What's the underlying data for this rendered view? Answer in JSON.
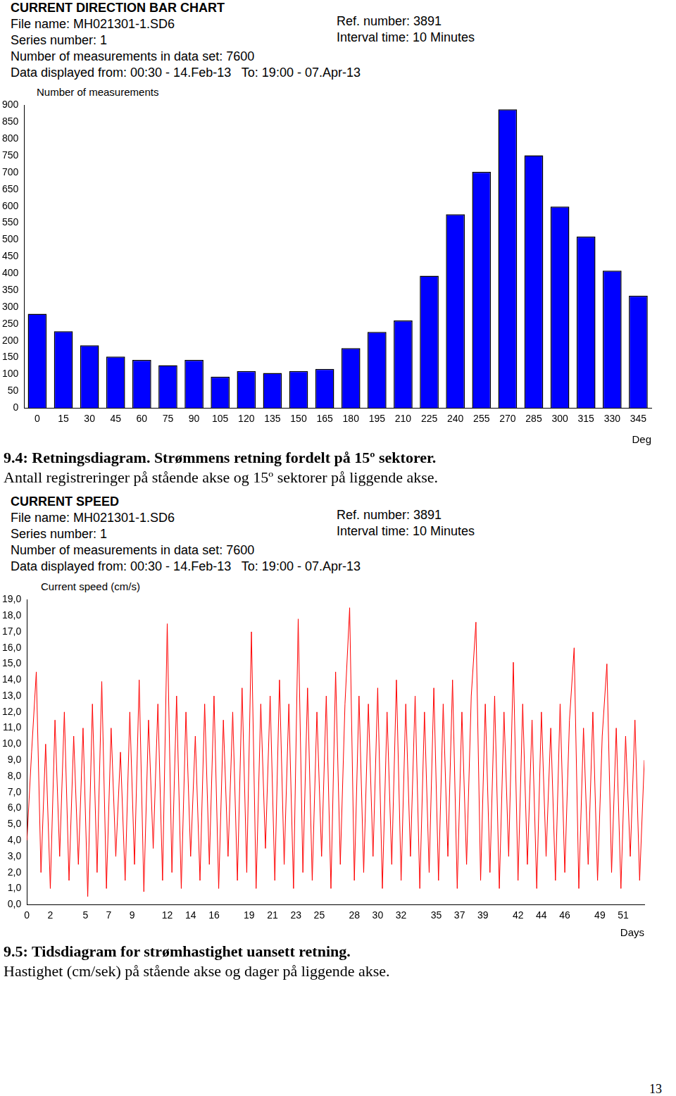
{
  "page_number": "13",
  "chart_data": [
    {
      "type": "bar",
      "title": "CURRENT DIRECTION BAR CHART",
      "subtitle": [
        "File name: MH021301-1.SD6",
        "Series number: 1",
        "Number of measurements in data set: 7600",
        "Data displayed from: 00:30 - 14.Feb-13   To: 19:00 - 07.Apr-13"
      ],
      "annotations": [
        "Ref. number: 3891",
        "Interval time: 10 Minutes"
      ],
      "ylabel": "Number of measurements",
      "xlabel": "Deg",
      "categories": [
        "0",
        "15",
        "30",
        "45",
        "60",
        "75",
        "90",
        "105",
        "120",
        "135",
        "150",
        "165",
        "180",
        "195",
        "210",
        "225",
        "240",
        "255",
        "270",
        "285",
        "300",
        "315",
        "330",
        "345"
      ],
      "values": [
        280,
        228,
        186,
        153,
        143,
        127,
        143,
        93,
        110,
        104,
        110,
        116,
        178,
        226,
        260,
        393,
        576,
        702,
        888,
        751,
        599,
        510,
        408,
        334
      ],
      "color": "#0000ff",
      "ylim": [
        0,
        900
      ],
      "yticks": [
        0,
        50,
        100,
        150,
        200,
        250,
        300,
        350,
        400,
        450,
        500,
        550,
        600,
        650,
        700,
        750,
        800,
        850,
        900
      ],
      "grid": false,
      "caption": [
        "9.4: Retningsdiagram. Strømmens retning fordelt på 15º sektorer.",
        "Antall registreringer på stående akse og 15º sektorer på liggende akse."
      ]
    },
    {
      "type": "line",
      "title": "CURRENT SPEED",
      "subtitle": [
        "File name: MH021301-1.SD6",
        "Series number: 1",
        "Number of measurements in data set: 7600",
        "Data displayed from: 00:30 - 14.Feb-13   To: 19:00 - 07.Apr-13"
      ],
      "annotations": [
        "Ref. number: 3891",
        "Interval time: 10 Minutes"
      ],
      "ylabel": "Current speed (cm/s)",
      "xlabel": "Days",
      "x": [
        0,
        0.4,
        0.8,
        1.2,
        1.6,
        2,
        2.4,
        2.8,
        3.2,
        3.6,
        4,
        4.4,
        4.8,
        5.2,
        5.6,
        6,
        6.4,
        6.8,
        7.2,
        7.6,
        8,
        8.4,
        8.8,
        9.2,
        9.6,
        10,
        10.4,
        10.8,
        11.2,
        11.6,
        12,
        12.4,
        12.8,
        13.2,
        13.6,
        14,
        14.4,
        14.8,
        15.2,
        15.6,
        16,
        16.4,
        16.8,
        17.2,
        17.6,
        18,
        18.4,
        18.8,
        19.2,
        19.6,
        20,
        20.4,
        20.8,
        21.2,
        21.6,
        22,
        22.4,
        22.8,
        23.2,
        23.6,
        24,
        24.4,
        24.8,
        25.2,
        25.6,
        26,
        26.4,
        26.8,
        27.2,
        27.6,
        28,
        28.4,
        28.8,
        29.2,
        29.6,
        30,
        30.4,
        30.8,
        31.2,
        31.6,
        32,
        32.4,
        32.8,
        33.2,
        33.6,
        34,
        34.4,
        34.8,
        35.2,
        35.6,
        36,
        36.4,
        36.8,
        37.2,
        37.6,
        38,
        38.4,
        38.8,
        39.2,
        39.6,
        40,
        40.4,
        40.8,
        41.2,
        41.6,
        42,
        42.4,
        42.8,
        43.2,
        43.6,
        44,
        44.4,
        44.8,
        45.2,
        45.6,
        46,
        46.4,
        46.8,
        47.2,
        47.6,
        48,
        48.4,
        48.8,
        49.2,
        49.6,
        50,
        50.4,
        50.8,
        51.2,
        51.6,
        52,
        52.4,
        52.8
      ],
      "values": [
        4.0,
        9.5,
        14.5,
        2.0,
        10.0,
        1.0,
        11.5,
        3.0,
        12.0,
        1.5,
        10.5,
        2.5,
        11.0,
        0.5,
        12.5,
        2.0,
        13.9,
        1.0,
        11.0,
        3.0,
        9.5,
        1.5,
        12.0,
        2.5,
        14.0,
        0.8,
        11.5,
        3.5,
        12.5,
        1.5,
        17.5,
        2.0,
        13.0,
        1.0,
        12.0,
        3.0,
        10.5,
        1.5,
        12.5,
        2.5,
        13.0,
        1.0,
        11.5,
        3.0,
        12.0,
        1.5,
        13.5,
        2.0,
        17.0,
        1.0,
        12.5,
        3.5,
        13.0,
        1.5,
        14.0,
        2.5,
        12.5,
        1.0,
        17.8,
        2.0,
        13.5,
        1.5,
        12.0,
        3.0,
        13.0,
        1.0,
        14.5,
        2.5,
        12.5,
        18.5,
        1.5,
        13.0,
        2.0,
        12.5,
        3.0,
        13.5,
        1.0,
        12.0,
        2.5,
        14.0,
        1.5,
        12.5,
        3.0,
        13.0,
        1.0,
        12.0,
        2.0,
        13.5,
        1.5,
        12.5,
        3.0,
        14.0,
        1.0,
        12.0,
        2.5,
        13.0,
        17.6,
        1.5,
        12.5,
        2.0,
        13.0,
        1.0,
        12.0,
        3.0,
        15.1,
        1.5,
        12.5,
        2.5,
        11.5,
        1.0,
        12.0,
        3.0,
        11.0,
        1.5,
        12.5,
        2.0,
        11.5,
        16.0,
        1.0,
        11.0,
        2.5,
        12.0,
        1.5,
        10.5,
        15.0,
        2.0,
        11.0,
        1.0,
        10.5,
        3.0,
        11.5,
        1.5,
        9.0
      ],
      "color": "#ff0000",
      "xlim": [
        0,
        52.8
      ],
      "xticks": [
        0,
        2,
        5,
        7,
        9,
        12,
        14,
        16,
        19,
        21,
        23,
        25,
        28,
        30,
        32,
        35,
        37,
        39,
        42,
        44,
        46,
        49,
        51
      ],
      "ylim": [
        0,
        19
      ],
      "yticks": [
        {
          "value": 0,
          "label": "0,0"
        },
        {
          "value": 1,
          "label": "1,0"
        },
        {
          "value": 2,
          "label": "2,0"
        },
        {
          "value": 3,
          "label": "3,0"
        },
        {
          "value": 4,
          "label": "4,0"
        },
        {
          "value": 5,
          "label": "5,0"
        },
        {
          "value": 6,
          "label": "6,0"
        },
        {
          "value": 7,
          "label": "7,0"
        },
        {
          "value": 8,
          "label": "8,0"
        },
        {
          "value": 9,
          "label": "9,0"
        },
        {
          "value": 10,
          "label": "10,0"
        },
        {
          "value": 11,
          "label": "11,0"
        },
        {
          "value": 12,
          "label": "12,0"
        },
        {
          "value": 13,
          "label": "13,0"
        },
        {
          "value": 14,
          "label": "14,0"
        },
        {
          "value": 15,
          "label": "15,0"
        },
        {
          "value": 16,
          "label": "16,0"
        },
        {
          "value": 17,
          "label": "17,0"
        },
        {
          "value": 18,
          "label": "18,0"
        },
        {
          "value": 19,
          "label": "19,0"
        }
      ],
      "grid": false,
      "caption": [
        "9.5: Tidsdiagram for strømhastighet uansett retning.",
        "Hastighet (cm/sek) på stående akse og dager på liggende akse."
      ]
    }
  ]
}
